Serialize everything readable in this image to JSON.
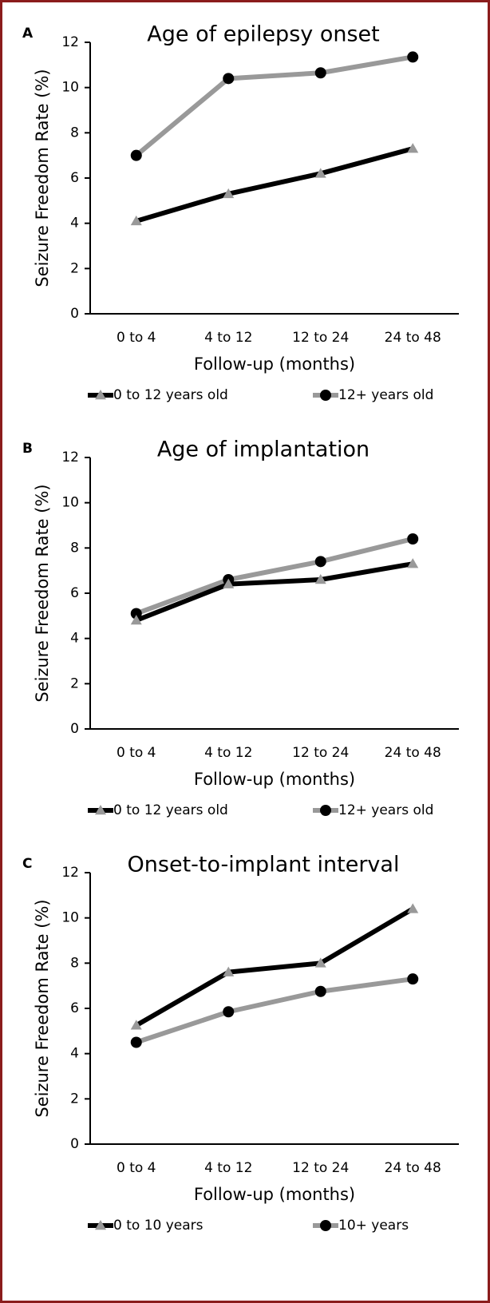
{
  "chart_data": [
    {
      "type": "line",
      "panel": "A",
      "title": "Age of epilepsy onset",
      "x_label": "Follow-up (months)",
      "y_label": "Seizure Freedom Rate (%)",
      "categories": [
        "0 to 4",
        "4 to 12",
        "12 to 24",
        "24 to 48"
      ],
      "series": [
        {
          "name": "0 to 12 years old",
          "color": "#000000",
          "marker": "triangle",
          "marker_color": "#999999",
          "values": [
            4.1,
            5.3,
            6.2,
            7.3
          ]
        },
        {
          "name": "12+ years old",
          "color": "#999999",
          "marker": "circle",
          "marker_color": "#000000",
          "values": [
            7.0,
            10.4,
            10.65,
            11.35
          ]
        }
      ],
      "ylim": [
        0,
        12
      ],
      "yticks": [
        0,
        2,
        4,
        6,
        8,
        10,
        12
      ],
      "legend": "bottom"
    },
    {
      "type": "line",
      "panel": "B",
      "title": "Age of implantation",
      "x_label": "Follow-up (months)",
      "y_label": "Seizure Freedom Rate (%)",
      "categories": [
        "0 to 4",
        "4 to 12",
        "12 to 24",
        "24 to 48"
      ],
      "series": [
        {
          "name": "0 to 12 years old",
          "color": "#000000",
          "marker": "triangle",
          "marker_color": "#999999",
          "values": [
            4.8,
            6.4,
            6.6,
            7.3
          ]
        },
        {
          "name": "12+ years old",
          "color": "#999999",
          "marker": "circle",
          "marker_color": "#000000",
          "values": [
            5.1,
            6.6,
            7.4,
            8.4
          ]
        }
      ],
      "ylim": [
        0,
        12
      ],
      "yticks": [
        0,
        2,
        4,
        6,
        8,
        10,
        12
      ],
      "legend": "bottom"
    },
    {
      "type": "line",
      "panel": "C",
      "title": "Onset-to-implant interval",
      "x_label": "Follow-up (months)",
      "y_label": "Seizure Freedom Rate (%)",
      "categories": [
        "0 to 4",
        "4 to 12",
        "12 to 24",
        "24 to 48"
      ],
      "series": [
        {
          "name": "0 to 10 years",
          "color": "#000000",
          "marker": "triangle",
          "marker_color": "#999999",
          "values": [
            5.25,
            7.6,
            8.0,
            10.4
          ]
        },
        {
          "name": "10+ years",
          "color": "#999999",
          "marker": "circle",
          "marker_color": "#000000",
          "values": [
            4.5,
            5.85,
            6.75,
            7.3
          ]
        }
      ],
      "ylim": [
        0,
        12
      ],
      "yticks": [
        0,
        2,
        4,
        6,
        8,
        10,
        12
      ],
      "legend": "bottom"
    }
  ]
}
